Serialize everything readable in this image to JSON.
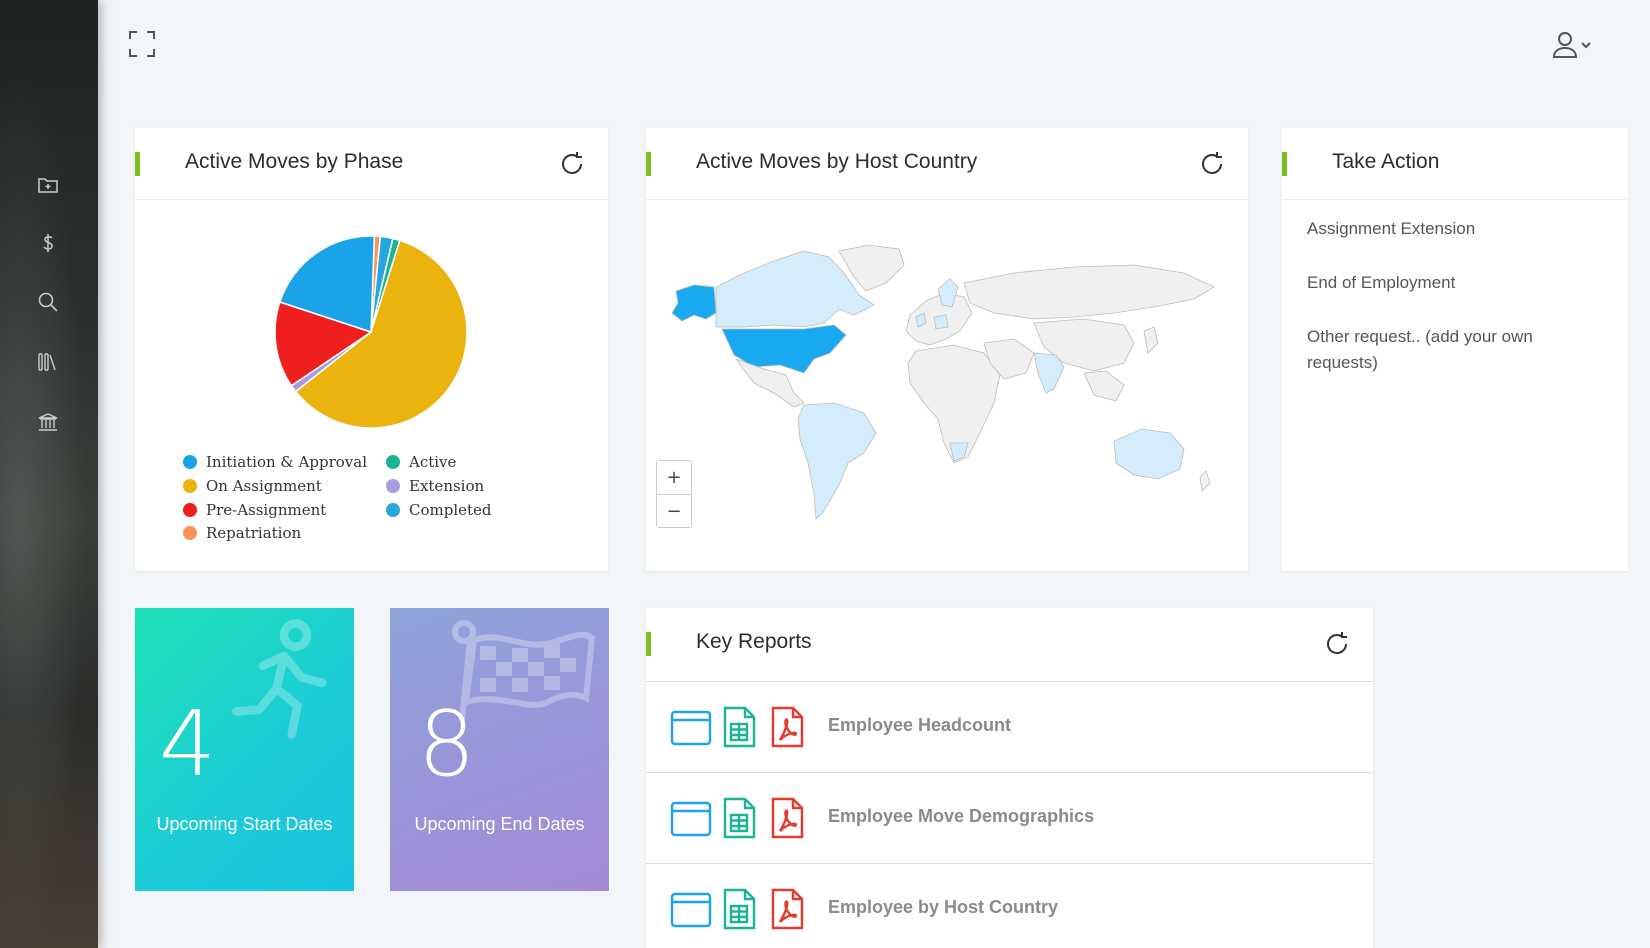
{
  "nav": {
    "items": [
      {
        "icon": "folder-plus-icon"
      },
      {
        "icon": "dollar-icon"
      },
      {
        "icon": "search-icon"
      },
      {
        "icon": "library-icon"
      },
      {
        "icon": "bank-icon"
      }
    ]
  },
  "topbar": {
    "expand_icon": "fullscreen-icon",
    "user_icon": "user-icon"
  },
  "phase_card": {
    "title": "Active Moves by Phase",
    "legend": [
      {
        "label": "Initiation & Approval",
        "color": "#1aa3e8"
      },
      {
        "label": "On Assignment",
        "color": "#ebb30e"
      },
      {
        "label": "Pre-Assignment",
        "color": "#ef1f1f"
      },
      {
        "label": "Repatriation",
        "color": "#f8965a"
      },
      {
        "label": "Active",
        "color": "#1ab394"
      },
      {
        "label": "Extension",
        "color": "#a99be0"
      },
      {
        "label": "Completed",
        "color": "#25a7de"
      }
    ]
  },
  "chart_data": {
    "type": "pie",
    "categories": [
      "Initiation & Approval",
      "On Assignment",
      "Pre-Assignment",
      "Repatriation",
      "Active",
      "Extension",
      "Completed"
    ],
    "values": [
      20.5,
      59.5,
      14.5,
      1.0,
      1.2,
      1.2,
      2.1
    ],
    "colors": [
      "#1aa3e8",
      "#ebb30e",
      "#ef1f1f",
      "#f8965a",
      "#1ab394",
      "#a99be0",
      "#25a7de"
    ],
    "order": [
      "Repatriation",
      "Completed",
      "Active",
      "On Assignment",
      "Extension",
      "Pre-Assignment",
      "Initiation & Approval"
    ],
    "legend_position": "bottom"
  },
  "country_card": {
    "title": "Active Moves by Host Country",
    "zoom_in": "+",
    "zoom_out": "−",
    "highlight_colors": {
      "high": "#19a9f0",
      "low": "#d4ecfb",
      "none": "#f0f0f0"
    }
  },
  "take_action": {
    "title": "Take Action",
    "links": [
      "Assignment Extension",
      "End of Employment",
      "Other request.. (add your own requests)"
    ]
  },
  "tiles": {
    "start": {
      "count": "4",
      "label": "Upcoming Start Dates"
    },
    "end": {
      "count": "8",
      "label": "Upcoming End Dates"
    }
  },
  "reports": {
    "title": "Key Reports",
    "rows": [
      {
        "name": "Employee Headcount"
      },
      {
        "name": "Employee Move Demographics"
      },
      {
        "name": "Employee by Host Country"
      }
    ]
  }
}
